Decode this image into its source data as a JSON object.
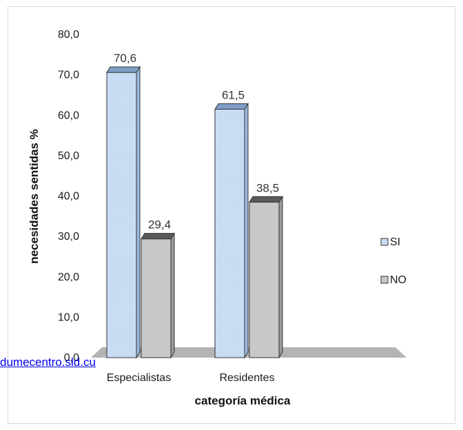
{
  "chart_data": {
    "type": "bar",
    "categories": [
      "Especialistas",
      "Residentes"
    ],
    "series": [
      {
        "name": "SI",
        "values": [
          70.6,
          61.5
        ],
        "color": "#c5dcf5",
        "top_color": "#7e9ec7"
      },
      {
        "name": "NO",
        "values": [
          29.4,
          38.5
        ],
        "color": "#c8c8c8",
        "top_color": "#5a5a5a"
      }
    ],
    "data_labels": [
      "70,6",
      "29,4",
      "61,5",
      "38,5"
    ],
    "ylabel": "necesidades  sentidas %",
    "xlabel": "categoría médica",
    "ylim": [
      0,
      80
    ],
    "yticks": [
      "0,0",
      "10,0",
      "20,0",
      "30,0",
      "40,0",
      "50,0",
      "60,0",
      "70,0",
      "80,0"
    ],
    "grid": false,
    "legend_position": "right",
    "three_d": true
  },
  "source_link": "dumecentro.sld.cu"
}
